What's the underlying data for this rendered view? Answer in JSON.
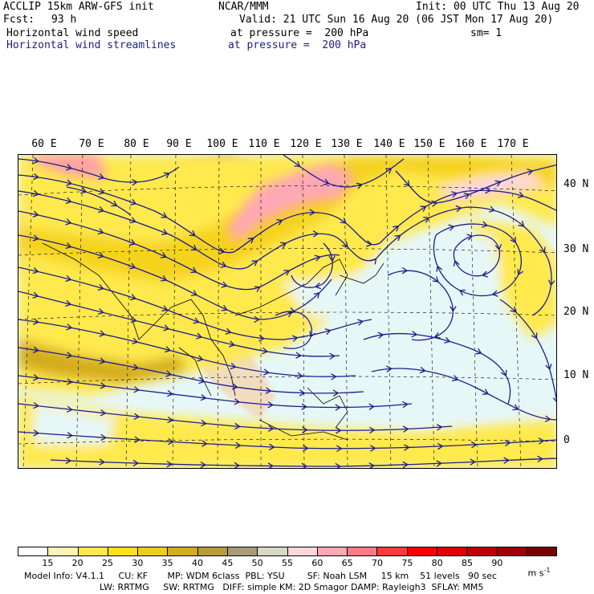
{
  "header": {
    "model": "ACCLIP 15km ARW-GFS init",
    "fcst_label": "Fcst:",
    "fcst_value": "93 h",
    "org": "NCAR/MMM",
    "init": "Init: 00 UTC Thu 13 Aug 20",
    "valid": "Valid: 21 UTC Sun 16 Aug 20 (06 JST Mon 17 Aug 20)",
    "field1_name": "Horizontal wind speed",
    "field1_level": "at pressure =  200 hPa",
    "sm": "sm= 1",
    "field2_name": "Horizontal wind streamlines",
    "field2_level": "at pressure =  200 hPa"
  },
  "map": {
    "lon_labels": [
      "60 E",
      "70 E",
      "80 E",
      "90 E",
      "100 E",
      "110 E",
      "120 E",
      "130 E",
      "140 E",
      "150 E",
      "160 E",
      "170 E"
    ],
    "lat_labels": [
      "40 N",
      "30 N",
      "20 N",
      "10 N",
      "0"
    ],
    "streamline_color": "#1c1c8c",
    "coast_color": "#000000"
  },
  "colorbar": {
    "labels": [
      "15",
      "20",
      "25",
      "30",
      "35",
      "40",
      "45",
      "50",
      "55",
      "60",
      "65",
      "70",
      "75",
      "80",
      "85",
      "90"
    ],
    "unit": "m s",
    "unit_exp": "-1",
    "colors": [
      "#ffffff",
      "#fff4b3",
      "#ffe94d",
      "#ffe01a",
      "#f0cc1a",
      "#d4ac1e",
      "#b89c3c",
      "#a89c78",
      "#d9d7c6",
      "#ffd6dc",
      "#ffa8b3",
      "#ff7a88",
      "#ff3a3a",
      "#ff0000",
      "#e00000",
      "#c00000",
      "#a00000",
      "#7a0000"
    ]
  },
  "footer": {
    "line1": "Model Info: V4.1.1     CU: KF       MP: WDM 6class  PBL: YSU        SF: Noah LSM     15 km    51 levels   90 sec",
    "line2": "LW: RRTMG     SW: RRTMG   DIFF: simple KM: 2D Smagor DAMP: Rayleigh3  SFLAY: MM5"
  }
}
